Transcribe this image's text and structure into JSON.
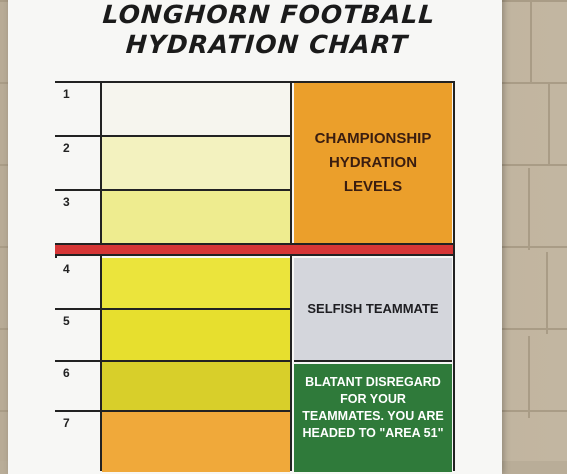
{
  "poster": {
    "title_line1": "LONGHORN FOOTBALL",
    "title_line2": "HYDRATION CHART"
  },
  "rows": [
    {
      "level": "1",
      "color": "#f6f5ee"
    },
    {
      "level": "2",
      "color": "#f3f2bf"
    },
    {
      "level": "3",
      "color": "#eeec8f"
    },
    {
      "level": "4",
      "color": "#ebe43c"
    },
    {
      "level": "5",
      "color": "#e7df2e"
    },
    {
      "level": "6",
      "color": "#d8cf2a"
    },
    {
      "level": "7",
      "color": "#f0a93a"
    }
  ],
  "categories": [
    {
      "label": "CHAMPIONSHIP HYDRATION LEVELS",
      "color": "#eb9f2b",
      "text_color": "#3a1d10"
    },
    {
      "label": "SELFISH TEAMMATE",
      "color": "#d4d6dc",
      "text_color": "#1e1e22"
    },
    {
      "label": "BLATANT DISREGARD FOR YOUR TEAMMATES. YOU ARE HEADED TO \"AREA 51\"",
      "color": "#2f7a3a",
      "text_color": "#ffffff"
    }
  ],
  "colors": {
    "danger_line": "#d63636",
    "wall": "#bfb29c"
  }
}
